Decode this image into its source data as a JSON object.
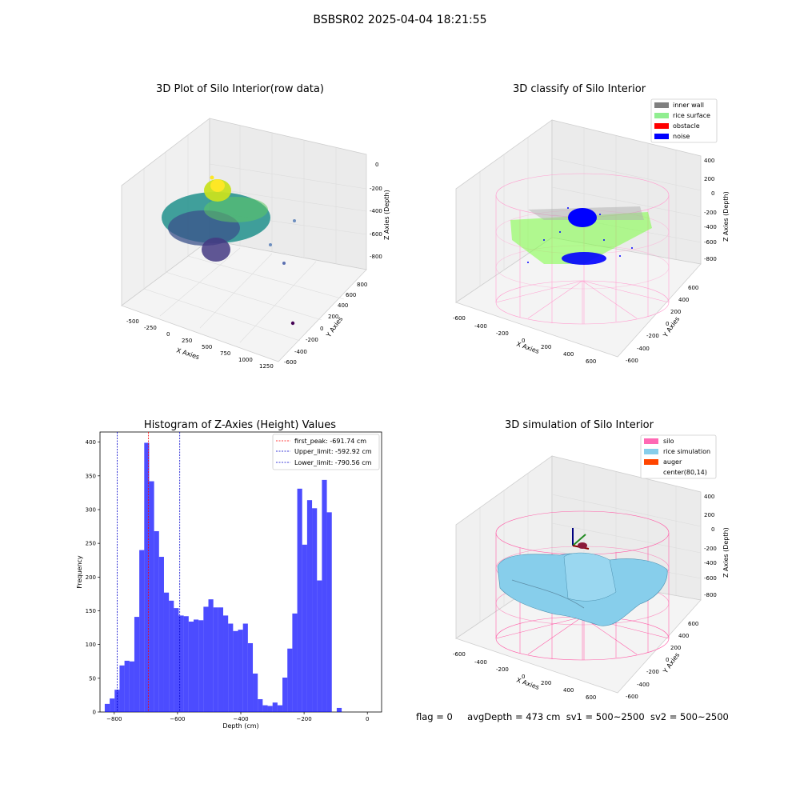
{
  "suptitle": "BSBSR02 2025-04-04 18:21:55",
  "footer": {
    "flag": "flag = 0",
    "avg_depth": "avgDepth = 473 cm",
    "sv1": "sv1 = 500~2500",
    "sv2": "sv2 = 500~2500"
  },
  "chart_data": [
    {
      "type": "scatter",
      "title": "3D Plot of Silo Interior(row data)",
      "xlabel": "X Axies",
      "ylabel": "Y Axies",
      "zlabel": "Z Axies (Depth)",
      "x_ticks": [
        "-500",
        "-250",
        "0",
        "250",
        "500",
        "750",
        "1000",
        "1250"
      ],
      "y_ticks": [
        "-600",
        "-400",
        "-200",
        "0",
        "200",
        "400",
        "600",
        "800"
      ],
      "z_ticks": [
        "-800",
        "-600",
        "-400",
        "-200",
        "0"
      ],
      "colormap": "viridis"
    },
    {
      "type": "scatter",
      "title": "3D classify of Silo Interior",
      "xlabel": "X Axies",
      "ylabel": "Y Axies",
      "zlabel": "Z Axies (Depth)",
      "x_ticks": [
        "-600",
        "-400",
        "-200",
        "0",
        "200",
        "400",
        "600"
      ],
      "y_ticks": [
        "-600",
        "-400",
        "-200",
        "0",
        "200",
        "400",
        "600"
      ],
      "z_ticks": [
        "-800",
        "-600",
        "-400",
        "-200",
        "0",
        "200",
        "400"
      ],
      "legend_position": "top-right",
      "legend": [
        {
          "label": "inner wall",
          "color": "#808080"
        },
        {
          "label": "rice surface",
          "color": "#90ee90"
        },
        {
          "label": "obstacle",
          "color": "#ff0000"
        },
        {
          "label": "noise",
          "color": "#0000ff"
        }
      ]
    },
    {
      "type": "bar",
      "title": "Histogram of Z-Axies (Height) Values",
      "xlabel": "Depth (cm)",
      "ylabel": "Frequency",
      "xlim": [
        -845,
        45
      ],
      "ylim": [
        0,
        415
      ],
      "x_ticks": [
        -800,
        -600,
        -400,
        -200,
        0
      ],
      "y_ticks": [
        0,
        50,
        100,
        150,
        200,
        250,
        300,
        350,
        400
      ],
      "bar_color": "#0000ff",
      "bin_width": 15.6,
      "bin_start": -830,
      "values": [
        12,
        20,
        33,
        69,
        76,
        75,
        141,
        240,
        399,
        342,
        268,
        230,
        177,
        165,
        154,
        143,
        142,
        134,
        137,
        136,
        156,
        167,
        155,
        155,
        143,
        131,
        120,
        122,
        131,
        102,
        57,
        19,
        10,
        9,
        14,
        10,
        51,
        94,
        146,
        331,
        248,
        314,
        302,
        195,
        344,
        296,
        0,
        6
      ],
      "lines": [
        {
          "label": "first_peak: -691.74 cm",
          "x": -691.74,
          "color": "#ff0000"
        },
        {
          "label": "Upper_limit: -592.92 cm",
          "x": -592.92,
          "color": "#0000cc"
        },
        {
          "label": "Lower_limit: -790.56 cm",
          "x": -790.56,
          "color": "#0000cc"
        }
      ],
      "legend_position": "top-right"
    },
    {
      "type": "surface",
      "title": "3D simulation of Silo Interior",
      "xlabel": "X Axies",
      "ylabel": "Y Axies",
      "zlabel": "Z Axies (Depth)",
      "x_ticks": [
        "-600",
        "-400",
        "-200",
        "0",
        "200",
        "400",
        "600"
      ],
      "y_ticks": [
        "-600",
        "-400",
        "-200",
        "0",
        "200",
        "400",
        "600"
      ],
      "z_ticks": [
        "-800",
        "-600",
        "-400",
        "-200",
        "0",
        "200",
        "400"
      ],
      "legend_position": "top-right",
      "legend": [
        {
          "label": "silo",
          "color": "#ff69b4"
        },
        {
          "label": "rice simulation",
          "color": "#87ceeb"
        },
        {
          "label": "auger",
          "color": "#ff4500"
        },
        {
          "label": "center(80,14)",
          "color": ""
        }
      ]
    }
  ]
}
